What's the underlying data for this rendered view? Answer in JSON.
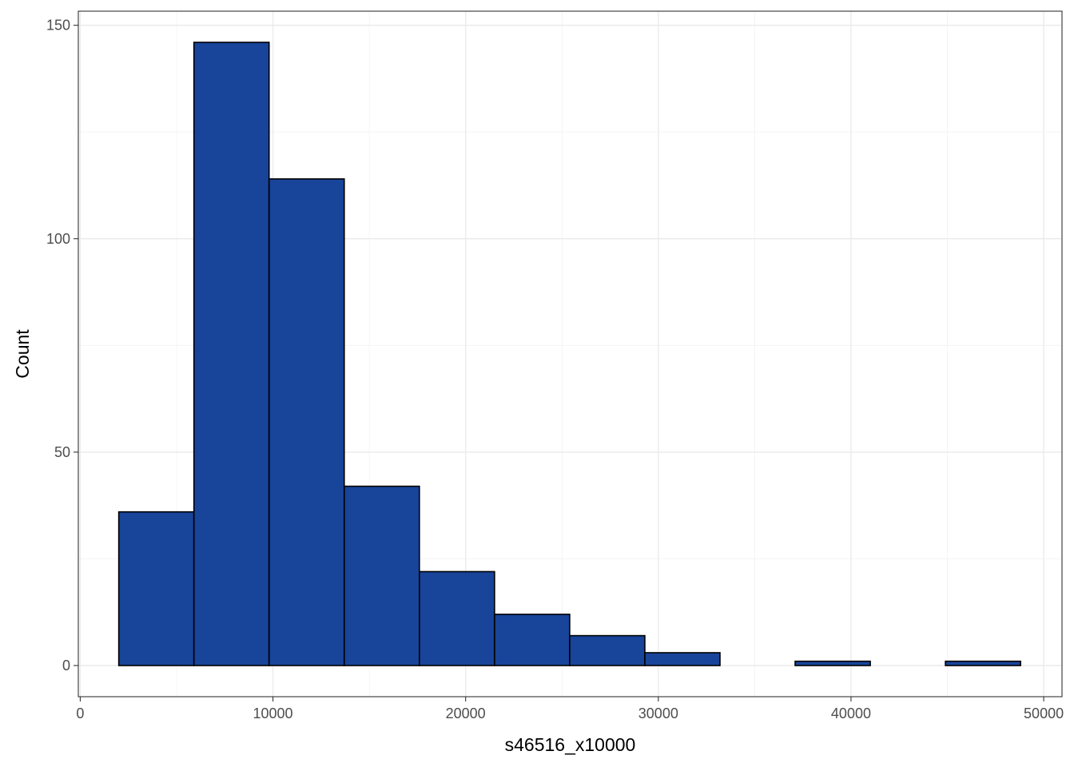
{
  "chart_data": {
    "type": "bar",
    "title": "",
    "xlabel": "s46516_x10000",
    "ylabel": "Count",
    "xlim": [
      -100,
      50950
    ],
    "ylim": [
      -7.3,
      153.3
    ],
    "grid": true,
    "legend": "none",
    "bar_fill": "#18449a",
    "bar_stroke": "#000000",
    "x_ticks": [
      0,
      10000,
      20000,
      30000,
      40000,
      50000
    ],
    "x_tick_labels": [
      "0",
      "10000",
      "20000",
      "30000",
      "40000",
      "50000"
    ],
    "y_ticks": [
      0,
      50,
      100,
      150
    ],
    "y_tick_labels": [
      "0",
      "50",
      "100",
      "150"
    ],
    "bins": [
      {
        "x0": 2000,
        "x1": 5900,
        "count": 36
      },
      {
        "x0": 5900,
        "x1": 9800,
        "count": 146
      },
      {
        "x0": 9800,
        "x1": 13700,
        "count": 114
      },
      {
        "x0": 13700,
        "x1": 17600,
        "count": 42
      },
      {
        "x0": 17600,
        "x1": 21500,
        "count": 22
      },
      {
        "x0": 21500,
        "x1": 25400,
        "count": 12
      },
      {
        "x0": 25400,
        "x1": 29300,
        "count": 7
      },
      {
        "x0": 29300,
        "x1": 33200,
        "count": 3
      },
      {
        "x0": 33200,
        "x1": 37100,
        "count": 0
      },
      {
        "x0": 37100,
        "x1": 41000,
        "count": 1
      },
      {
        "x0": 41000,
        "x1": 44900,
        "count": 0
      },
      {
        "x0": 44900,
        "x1": 48800,
        "count": 1
      }
    ]
  }
}
